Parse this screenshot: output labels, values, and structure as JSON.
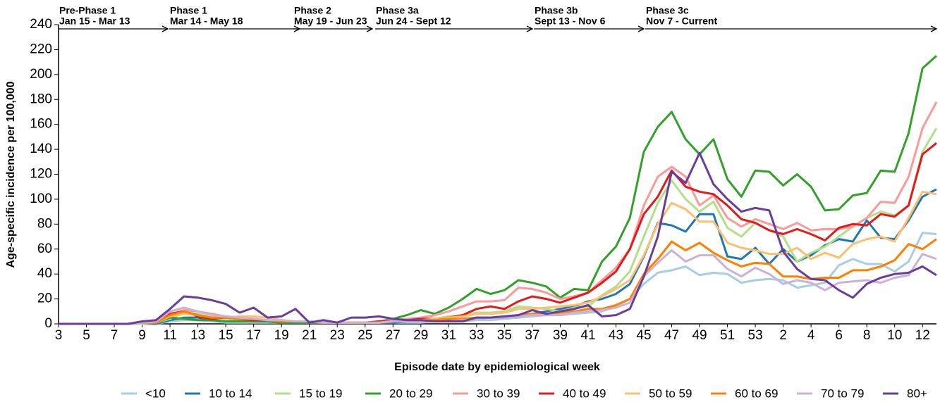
{
  "chart_data": {
    "type": "line",
    "x_label": "Episode date by epidemiological week",
    "y_label": "Age-specific incidence per 100,000",
    "categories": [
      "3",
      null,
      "5",
      null,
      "7",
      null,
      "9",
      null,
      "11",
      null,
      "13",
      null,
      "15",
      null,
      "17",
      null,
      "19",
      null,
      "21",
      null,
      "23",
      null,
      "25",
      null,
      "27",
      null,
      "29",
      null,
      "31",
      null,
      "33",
      null,
      "35",
      null,
      "37",
      null,
      "39",
      null,
      "41",
      null,
      "43",
      null,
      "45",
      null,
      "47",
      null,
      "49",
      null,
      "51",
      null,
      "53",
      null,
      "2",
      null,
      "4",
      null,
      "6",
      null,
      "8",
      null,
      "10",
      null,
      "12",
      null
    ],
    "ylim": [
      0,
      240
    ],
    "yticks": [
      0,
      20,
      40,
      60,
      80,
      100,
      120,
      140,
      160,
      180,
      200,
      220,
      240
    ],
    "annotations": [
      {
        "label": "Pre-Phase 1",
        "range": "Jan 15 - Mar 13"
      },
      {
        "label": "Phase 1",
        "range": "Mar 14 - May 18"
      },
      {
        "label": "Phase 2",
        "range": "May 19 - Jun 23"
      },
      {
        "label": "Phase 3a",
        "range": "Jun 24 - Sept 12"
      },
      {
        "label": "Phase 3b",
        "range": "Sept 13 - Nov 6"
      },
      {
        "label": "Phase 3c",
        "range": "Nov 7 - Current"
      }
    ],
    "series": [
      {
        "name": "<10",
        "color": "#a6cee3",
        "values": [
          0,
          0,
          0,
          0,
          0,
          0,
          0,
          0,
          2,
          3,
          3,
          2,
          1,
          1,
          1,
          1,
          1,
          1,
          1,
          1,
          1,
          1,
          1,
          1,
          1,
          1,
          1,
          2,
          2,
          2,
          3,
          3,
          4,
          5,
          6,
          7,
          7,
          8,
          9,
          10,
          14,
          20,
          32,
          41,
          43,
          46,
          39,
          41,
          40,
          33,
          35,
          36,
          35,
          29,
          31,
          33,
          47,
          52,
          48,
          48,
          42,
          50,
          73,
          72
        ]
      },
      {
        "name": "10 to 14",
        "color": "#1f78b4",
        "values": [
          0,
          0,
          0,
          0,
          0,
          0,
          0,
          0,
          3,
          5,
          5,
          3,
          2,
          2,
          2,
          2,
          1,
          1,
          1,
          1,
          1,
          1,
          1,
          1,
          1,
          2,
          2,
          3,
          3,
          3,
          4,
          5,
          5,
          6,
          8,
          10,
          12,
          14,
          18,
          20,
          24,
          32,
          54,
          81,
          79,
          74,
          88,
          88,
          54,
          52,
          61,
          48,
          60,
          50,
          55,
          63,
          68,
          66,
          83,
          69,
          68,
          83,
          102,
          108
        ]
      },
      {
        "name": "15 to 19",
        "color": "#b2df8a",
        "values": [
          0,
          0,
          0,
          0,
          0,
          0,
          0,
          1,
          4,
          9,
          8,
          5,
          4,
          3,
          3,
          2,
          2,
          2,
          1,
          1,
          1,
          1,
          1,
          1,
          2,
          3,
          4,
          4,
          6,
          7,
          9,
          9,
          10,
          14,
          13,
          12,
          10,
          13,
          14,
          23,
          30,
          42,
          70,
          97,
          115,
          100,
          90,
          98,
          77,
          70,
          81,
          75,
          70,
          50,
          57,
          62,
          70,
          78,
          85,
          90,
          87,
          95,
          138,
          157
        ]
      },
      {
        "name": "20 to 29",
        "color": "#33a02c",
        "values": [
          0,
          0,
          0,
          0,
          0,
          0,
          1,
          1,
          5,
          4,
          3,
          3,
          2,
          2,
          2,
          2,
          1,
          1,
          1,
          1,
          1,
          1,
          1,
          2,
          4,
          7,
          11,
          8,
          13,
          20,
          28,
          24,
          27,
          35,
          33,
          30,
          21,
          28,
          27,
          50,
          62,
          85,
          138,
          158,
          170,
          148,
          136,
          148,
          116,
          102,
          123,
          122,
          111,
          120,
          110,
          91,
          92,
          103,
          105,
          123,
          122,
          153,
          205,
          215
        ]
      },
      {
        "name": "30 to 39",
        "color": "#fb9a99",
        "values": [
          0,
          0,
          0,
          0,
          0,
          0,
          1,
          1,
          8,
          11,
          10,
          8,
          6,
          5,
          4,
          3,
          2,
          2,
          2,
          1,
          1,
          1,
          1,
          2,
          3,
          4,
          5,
          7,
          10,
          14,
          18,
          18,
          19,
          29,
          28,
          25,
          20,
          22,
          25,
          35,
          45,
          60,
          95,
          118,
          126,
          118,
          95,
          103,
          85,
          78,
          84,
          80,
          76,
          81,
          75,
          76,
          76,
          78,
          85,
          98,
          97,
          118,
          157,
          178
        ]
      },
      {
        "name": "40 to 49",
        "color": "#e31a1c",
        "values": [
          0,
          0,
          0,
          0,
          0,
          0,
          1,
          1,
          8,
          10,
          6,
          4,
          5,
          4,
          3,
          3,
          2,
          2,
          2,
          1,
          1,
          1,
          1,
          2,
          2,
          3,
          4,
          4,
          5,
          7,
          12,
          14,
          12,
          18,
          22,
          20,
          17,
          21,
          25,
          33,
          42,
          60,
          88,
          102,
          123,
          110,
          106,
          104,
          95,
          84,
          81,
          75,
          72,
          76,
          72,
          67,
          77,
          80,
          79,
          88,
          86,
          95,
          136,
          145
        ]
      },
      {
        "name": "50 to 59",
        "color": "#fdbf6f",
        "values": [
          0,
          0,
          0,
          0,
          0,
          0,
          1,
          1,
          6,
          8,
          7,
          5,
          5,
          6,
          6,
          5,
          3,
          2,
          2,
          1,
          1,
          1,
          1,
          1,
          2,
          3,
          3,
          4,
          5,
          6,
          8,
          8,
          9,
          12,
          12,
          13,
          14,
          15,
          17,
          22,
          28,
          35,
          55,
          80,
          97,
          92,
          82,
          82,
          65,
          61,
          59,
          56,
          56,
          61,
          52,
          57,
          53,
          64,
          68,
          70,
          66,
          85,
          106,
          104
        ]
      },
      {
        "name": "60 to 69",
        "color": "#ff7f00",
        "values": [
          0,
          0,
          0,
          0,
          0,
          0,
          1,
          1,
          7,
          10,
          7,
          5,
          5,
          4,
          4,
          3,
          2,
          2,
          2,
          1,
          1,
          1,
          1,
          1,
          2,
          2,
          3,
          3,
          4,
          4,
          5,
          5,
          6,
          7,
          8,
          8,
          9,
          10,
          12,
          12,
          15,
          20,
          40,
          52,
          66,
          59,
          65,
          57,
          51,
          46,
          49,
          48,
          38,
          38,
          36,
          37,
          37,
          43,
          43,
          46,
          51,
          64,
          60,
          68
        ]
      },
      {
        "name": "70 to 79",
        "color": "#cab2d6",
        "values": [
          0,
          0,
          0,
          0,
          0,
          0,
          1,
          2,
          10,
          13,
          10,
          7,
          6,
          5,
          4,
          3,
          3,
          2,
          2,
          1,
          1,
          1,
          1,
          1,
          2,
          2,
          2,
          2,
          2,
          3,
          4,
          5,
          5,
          6,
          7,
          7,
          7,
          9,
          10,
          11,
          13,
          17,
          38,
          49,
          59,
          50,
          55,
          55,
          44,
          38,
          45,
          40,
          32,
          35,
          33,
          27,
          33,
          34,
          35,
          33,
          37,
          39,
          56,
          52
        ]
      },
      {
        "name": "80+",
        "color": "#6a3d9a",
        "values": [
          0,
          0,
          0,
          0,
          0,
          0,
          2,
          3,
          12,
          22,
          21,
          19,
          16,
          9,
          13,
          5,
          6,
          12,
          1,
          3,
          1,
          5,
          5,
          6,
          4,
          3,
          3,
          2,
          2,
          2,
          5,
          5,
          6,
          7,
          11,
          8,
          10,
          12,
          15,
          6,
          7,
          12,
          38,
          70,
          122,
          113,
          137,
          112,
          100,
          90,
          93,
          91,
          58,
          44,
          36,
          35,
          27,
          21,
          32,
          37,
          40,
          41,
          46,
          39
        ]
      }
    ]
  }
}
